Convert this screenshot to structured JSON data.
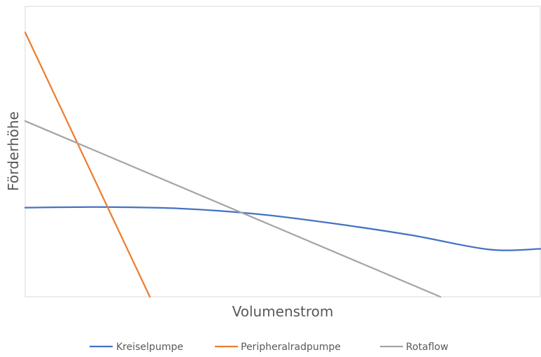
{
  "chart_data": {
    "type": "line",
    "title": "",
    "xlabel": "Volumenstrom",
    "ylabel": "Förderhöhe",
    "xlim": [
      0,
      10
    ],
    "ylim": [
      0,
      10
    ],
    "grid": false,
    "legend_position": "bottom",
    "series": [
      {
        "name": "Kreiselpumpe",
        "color": "#4472C4",
        "x": [
          0,
          1.5,
          3,
          4.5,
          6,
          7.5,
          9,
          10
        ],
        "y": [
          3.07,
          3.09,
          3.04,
          2.85,
          2.52,
          2.12,
          1.63,
          1.65
        ]
      },
      {
        "name": "Peripheralradpumpe",
        "color": "#ED7D31",
        "x": [
          0,
          2.42
        ],
        "y": [
          9.1,
          0
        ]
      },
      {
        "name": "Rotaflow",
        "color": "#A5A5A5",
        "x": [
          0,
          8.06
        ],
        "y": [
          6.05,
          0
        ]
      }
    ]
  }
}
